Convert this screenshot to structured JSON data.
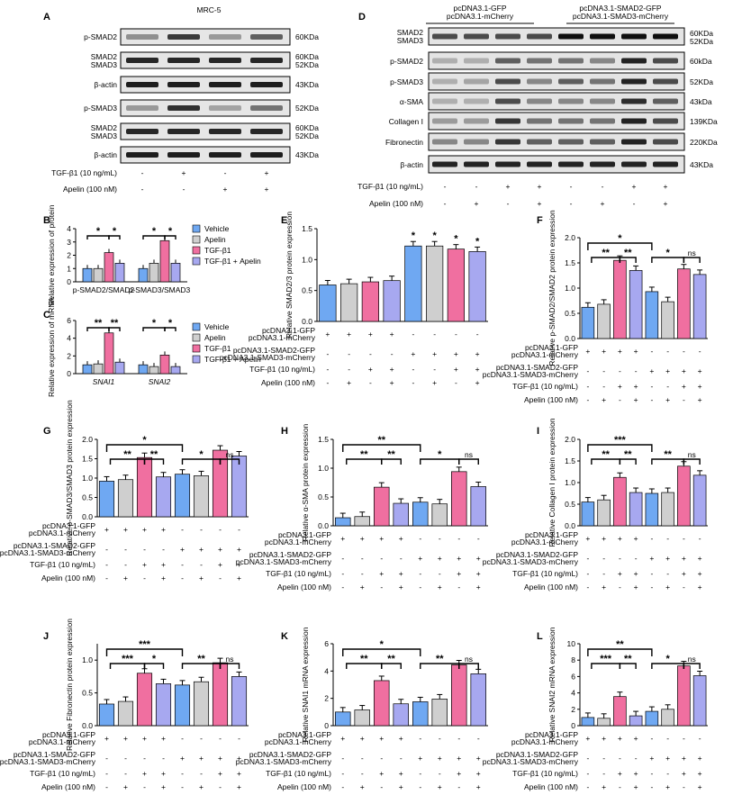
{
  "colors": {
    "blue": "#6fa8f2",
    "gray": "#cfcfcf",
    "pink": "#f06fa0",
    "lav": "#a7a8f0"
  },
  "blot_a": {
    "panel": "A",
    "title": "MRC-5",
    "rows": [
      {
        "label": [
          "p-SMAD2"
        ],
        "size": [
          "60KDa"
        ],
        "intensity": [
          0.35,
          0.8,
          0.3,
          0.6
        ]
      },
      {
        "label": [
          "SMAD2",
          "SMAD3"
        ],
        "size": [
          "60KDa",
          "52KDa"
        ],
        "intensity": [
          0.9,
          0.9,
          0.9,
          0.9
        ]
      },
      {
        "label": [
          "β-actin"
        ],
        "size": [
          "43KDa"
        ],
        "intensity": [
          0.95,
          0.95,
          0.95,
          0.95
        ]
      },
      {
        "label": [
          "p-SMAD3"
        ],
        "size": [
          "52KDa"
        ],
        "intensity": [
          0.3,
          0.85,
          0.25,
          0.5
        ]
      },
      {
        "label": [
          "SMAD2",
          "SMAD3"
        ],
        "size": [
          "60KDa",
          "52KDa"
        ],
        "intensity": [
          0.9,
          0.9,
          0.9,
          0.9
        ]
      },
      {
        "label": [
          "β-actin"
        ],
        "size": [
          "43KDa"
        ],
        "intensity": [
          0.95,
          0.95,
          0.95,
          0.95
        ]
      }
    ],
    "treatments": [
      {
        "label": "TGF-β1 (10 ng/mL)",
        "marks": [
          "-",
          "+",
          "-",
          "+"
        ]
      },
      {
        "label": "Apelin (100 nM)",
        "marks": [
          "-",
          "-",
          "+",
          "+"
        ]
      }
    ]
  },
  "blot_d": {
    "panel": "D",
    "groups": [
      {
        "lines": [
          "pcDNA3.1-GFP",
          "pcDNA3.1-mCherry"
        ]
      },
      {
        "lines": [
          "pcDNA3.1-SMAD2-GFP",
          "pcDNA3.1-SMAD3-mCherry"
        ]
      }
    ],
    "rows": [
      {
        "label": [
          "SMAD2",
          "SMAD3"
        ],
        "size": [
          "60KDa",
          "52KDa"
        ],
        "intensity": [
          0.7,
          0.7,
          0.7,
          0.7,
          1,
          1,
          1,
          1
        ]
      },
      {
        "label": [
          "p-SMAD2"
        ],
        "size": [
          "60kDa"
        ],
        "intensity": [
          0.2,
          0.2,
          0.6,
          0.5,
          0.5,
          0.4,
          0.9,
          0.7
        ]
      },
      {
        "label": [
          "p-SMAD3"
        ],
        "size": [
          "52KDa"
        ],
        "intensity": [
          0.2,
          0.25,
          0.7,
          0.4,
          0.6,
          0.5,
          0.9,
          0.7
        ]
      },
      {
        "label": [
          "α-SMA"
        ],
        "size": [
          "43kDa"
        ],
        "intensity": [
          0.2,
          0.2,
          0.7,
          0.4,
          0.4,
          0.4,
          0.85,
          0.6
        ]
      },
      {
        "label": [
          "Collagen I"
        ],
        "size": [
          "139KDa"
        ],
        "intensity": [
          0.3,
          0.3,
          0.8,
          0.5,
          0.5,
          0.5,
          0.9,
          0.7
        ]
      },
      {
        "label": [
          "Fibronectin"
        ],
        "size": [
          "220KDa"
        ],
        "intensity": [
          0.4,
          0.4,
          0.8,
          0.6,
          0.6,
          0.6,
          0.9,
          0.7
        ]
      },
      {
        "label": [
          "β-actin"
        ],
        "size": [
          "43KDa"
        ],
        "intensity": [
          0.9,
          0.9,
          0.9,
          0.9,
          0.9,
          0.9,
          0.9,
          0.9
        ]
      }
    ],
    "treatments": [
      {
        "label": "TGF-β1 (10 ng/mL)",
        "marks": [
          "-",
          "-",
          "+",
          "+",
          "-",
          "-",
          "+",
          "+"
        ]
      },
      {
        "label": "Apelin (100 nM)",
        "marks": [
          "-",
          "+",
          "-",
          "+",
          "-",
          "+",
          "-",
          "+"
        ]
      }
    ]
  },
  "legend": {
    "entries": [
      "Vehicle",
      "Apelin",
      "TGF-β1",
      "TGF-β1 + Apelin"
    ]
  },
  "chart_data": [
    {
      "panel": "B",
      "type": "bar",
      "ylabel": "Relative expression of protein",
      "ylim": [
        0,
        4
      ],
      "yticks": [
        0,
        1,
        2,
        3,
        4
      ],
      "categories": [
        "p-SMAD2/SMAD2",
        "p-SMAD3/SMAD3"
      ],
      "series": [
        {
          "name": "Vehicle",
          "values": [
            1.0,
            1.0
          ]
        },
        {
          "name": "Apelin",
          "values": [
            1.0,
            1.4
          ]
        },
        {
          "name": "TGF-β1",
          "values": [
            2.2,
            3.1
          ]
        },
        {
          "name": "TGF-β1 + Apelin",
          "values": [
            1.4,
            1.4
          ]
        }
      ],
      "annotations": [
        "*",
        "*",
        "*",
        "*"
      ]
    },
    {
      "panel": "C",
      "type": "bar",
      "ylabel": "Relative expression of mRNA",
      "ylim": [
        0,
        6
      ],
      "yticks": [
        0,
        2,
        4,
        6
      ],
      "categories": [
        "SNAI1",
        "SNAI2"
      ],
      "series": [
        {
          "name": "Vehicle",
          "values": [
            1.0,
            1.0
          ]
        },
        {
          "name": "Apelin",
          "values": [
            1.1,
            0.8
          ]
        },
        {
          "name": "TGF-β1",
          "values": [
            4.6,
            2.1
          ]
        },
        {
          "name": "TGF-β1 + Apelin",
          "values": [
            1.3,
            0.8
          ]
        }
      ],
      "annotations": [
        "**",
        "**",
        "*",
        "*"
      ]
    },
    {
      "panel": "E",
      "type": "bar",
      "ylabel": "Relative SMAD2/3 protein expression",
      "ylim": [
        0,
        1.5
      ],
      "yticks": [
        0.0,
        0.5,
        1.0,
        1.5
      ],
      "values": [
        0.59,
        0.61,
        0.64,
        0.66,
        1.22,
        1.22,
        1.17,
        1.13
      ],
      "annotations": [
        "*",
        "*",
        "*",
        "*"
      ]
    },
    {
      "panel": "F",
      "type": "bar",
      "ylabel": "Relative p-SMAD2/SMAD2 protein expression",
      "ylim": [
        0,
        2.0
      ],
      "yticks": [
        0.0,
        0.5,
        1.0,
        1.5,
        2.0
      ],
      "values": [
        0.62,
        0.68,
        1.55,
        1.35,
        0.93,
        0.73,
        1.38,
        1.27
      ],
      "annotations": [
        "**",
        "**",
        "*",
        "*",
        "ns"
      ]
    },
    {
      "panel": "G",
      "type": "bar",
      "ylabel": "Relative p-SMAD3/SMAD3 protein expression",
      "ylim": [
        0,
        2.0
      ],
      "yticks": [
        0.0,
        0.5,
        1.0,
        1.5,
        2.0
      ],
      "values": [
        0.92,
        0.96,
        1.53,
        1.03,
        1.1,
        1.06,
        1.72,
        1.57
      ],
      "annotations": [
        "**",
        "**",
        "*",
        "*",
        "ns"
      ]
    },
    {
      "panel": "H",
      "type": "bar",
      "ylabel": "Relative α-SMA protein expression",
      "ylim": [
        0,
        1.5
      ],
      "yticks": [
        0.0,
        0.5,
        1.0,
        1.5
      ],
      "values": [
        0.14,
        0.16,
        0.67,
        0.39,
        0.41,
        0.38,
        0.94,
        0.68
      ],
      "annotations": [
        "**",
        "**",
        "**",
        "*",
        "ns"
      ]
    },
    {
      "panel": "I",
      "type": "bar",
      "ylabel": "Relative Collagen I protein expression",
      "ylim": [
        0,
        2.0
      ],
      "yticks": [
        0.0,
        0.5,
        1.0,
        1.5,
        2.0
      ],
      "values": [
        0.55,
        0.6,
        1.12,
        0.77,
        0.75,
        0.77,
        1.38,
        1.17
      ],
      "annotations": [
        "**",
        "**",
        "***",
        "**",
        "ns"
      ]
    },
    {
      "panel": "J",
      "type": "bar",
      "ylabel": "Relative Fibronectin protein expression",
      "ylim": [
        0,
        1.25
      ],
      "yticks": [
        0.0,
        0.5,
        1.0
      ],
      "values": [
        0.33,
        0.37,
        0.8,
        0.64,
        0.62,
        0.67,
        0.96,
        0.75
      ],
      "annotations": [
        "***",
        "*",
        "**",
        "**",
        "ns"
      ]
    },
    {
      "panel": "K",
      "type": "bar",
      "ylabel": "Relative SNAI1 mRNA expression",
      "ylim": [
        0,
        6
      ],
      "yticks": [
        0,
        2,
        4,
        6
      ],
      "values": [
        1.0,
        1.15,
        3.3,
        1.6,
        1.75,
        1.95,
        4.45,
        3.8
      ],
      "annotations": [
        "**",
        "**",
        "*",
        "**",
        "ns"
      ]
    },
    {
      "panel": "L",
      "type": "bar",
      "ylabel": "Relative SNAI2 mRNA expression",
      "ylim": [
        0,
        10
      ],
      "yticks": [
        0,
        2,
        4,
        6,
        8,
        10
      ],
      "values": [
        1.0,
        0.9,
        3.55,
        1.2,
        1.75,
        2.0,
        7.3,
        6.1
      ],
      "annotations": [
        "***",
        "**",
        "**",
        "*",
        "ns"
      ]
    }
  ],
  "conditions": {
    "rows": [
      {
        "label": "pcDNA3.1-GFP",
        "marks": [
          "+",
          "+",
          "+",
          "+",
          "-",
          "-",
          "-",
          "-"
        ]
      },
      {
        "label": "pcDNA3.1-mCherry",
        "marks": null
      },
      {
        "label": "pcDNA3.1-SMAD2-GFP",
        "marks": [
          "-",
          "-",
          "-",
          "-",
          "+",
          "+",
          "+",
          "+"
        ]
      },
      {
        "label": "pcDNA3.1-SMAD3-mCherry",
        "marks": null
      },
      {
        "label": "TGF-β1 (10 ng/mL)",
        "marks": [
          "-",
          "-",
          "+",
          "+",
          "-",
          "-",
          "+",
          "+"
        ]
      },
      {
        "label": "Apelin (100 nM)",
        "marks": [
          "-",
          "+",
          "-",
          "+",
          "-",
          "+",
          "-",
          "+"
        ]
      }
    ]
  }
}
